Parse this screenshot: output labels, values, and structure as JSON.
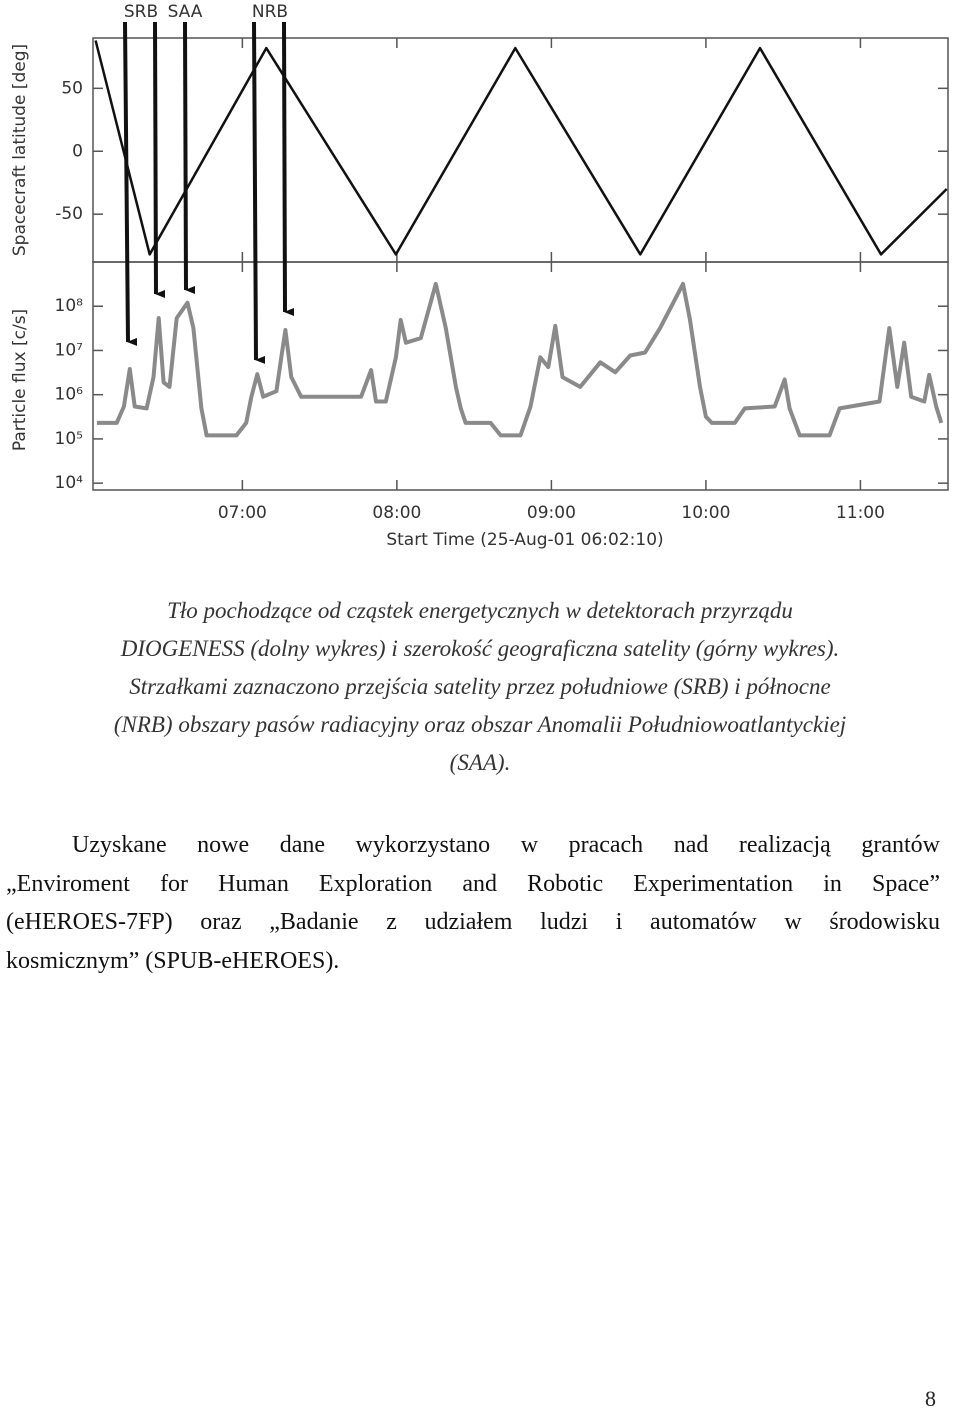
{
  "arrow_labels": [
    "SRB",
    "SAA",
    "NRB"
  ],
  "chart_data": [
    {
      "type": "line",
      "ylabel": "Spacecraft latitude [deg]",
      "xlim": [
        2,
        334
      ],
      "ylim": [
        -88,
        90
      ],
      "yticks": [
        50,
        0,
        -50
      ],
      "color": "#111111",
      "x": [
        3,
        24,
        69.3,
        119.6,
        166,
        214.5,
        261,
        308,
        333.5
      ],
      "values": [
        88,
        -82,
        82,
        -82,
        82,
        -82,
        82,
        -82,
        -30
      ]
    },
    {
      "type": "line",
      "ylabel": "Particle flux [c/s]",
      "log": true,
      "xlabel": "Start Time (25-Aug-01 06:02:10)",
      "xlim": [
        2,
        334
      ],
      "ylim": [
        7000,
        1000000000
      ],
      "xticks": [
        {
          "value": 60,
          "label": "07:00"
        },
        {
          "value": 120,
          "label": "08:00"
        },
        {
          "value": 180,
          "label": "09:00"
        },
        {
          "value": 240,
          "label": "10:00"
        },
        {
          "value": 300,
          "label": "11:00"
        }
      ],
      "yticks": [
        {
          "value": 100000000,
          "label": "10⁸"
        },
        {
          "value": 10000000,
          "label": "10⁷"
        },
        {
          "value": 1000000,
          "label": "10⁶"
        },
        {
          "value": 100000,
          "label": "10⁵"
        },
        {
          "value": 10000,
          "label": "10⁴"
        }
      ],
      "color": "#8a8a8a",
      "x": [
        3.5,
        11.2,
        14.0,
        16.3,
        18.2,
        22.8,
        25.5,
        27.5,
        29.4,
        31.7,
        34.5,
        38.7,
        41.0,
        44.1,
        46.1,
        57.7,
        61.5,
        63.5,
        65.8,
        68.1,
        73.2,
        75.1,
        76.7,
        79.0,
        82.8,
        106.1,
        110.0,
        111.9,
        115.7,
        119.6,
        121.5,
        123.5,
        129.3,
        135.1,
        139.0,
        142.9,
        144.8,
        146.7,
        156.4,
        160.3,
        168.0,
        171.9,
        175.7,
        178.8,
        181.5,
        184.3,
        191.2,
        199.0,
        204.8,
        210.6,
        216.4,
        222.2,
        231.1,
        233.8,
        237.7,
        240.0,
        242.3,
        251.2,
        255.1,
        266.7,
        270.6,
        272.5,
        276.4,
        288.0,
        291.9,
        307.4,
        311.2,
        314.3,
        317.0,
        319.7,
        324.8,
        326.7,
        329.4,
        331.4
      ],
      "values": [
        230000,
        230000,
        540000,
        3800000,
        540000,
        490000,
        2500000,
        54000000,
        1900000,
        1500000,
        54000000,
        120000000,
        32000000,
        490000,
        120000,
        120000,
        230000,
        900000,
        2900000,
        900000,
        1200000,
        7000000,
        29000000,
        2500000,
        900000,
        900000,
        3600000,
        700000,
        700000,
        7000000,
        49000000,
        15000000,
        19000000,
        320000000,
        32000000,
        1500000,
        490000,
        230000,
        230000,
        120000,
        120000,
        540000,
        7000000,
        4200000,
        36000000,
        2500000,
        1500000,
        5400000,
        3200000,
        7700000,
        9000000,
        32000000,
        320000000,
        49000000,
        1500000,
        320000,
        230000,
        230000,
        490000,
        540000,
        2200000,
        490000,
        120000,
        120000,
        490000,
        700000,
        32000000,
        1500000,
        15000000,
        900000,
        700000,
        2800000,
        540000,
        230000
      ]
    }
  ],
  "caption": [
    "Tło pochodzące od cząstek energetycznych w detektorach przyrządu",
    "DIOGENESS (dolny wykres) i szerokość geograficzna satelity (górny wykres).",
    "Strzałkami zaznaczono przejścia satelity przez południowe (SRB) i północne",
    "(NRB) obszary pasów radiacyjny oraz obszar Anomalii Południowoatlantyckiej",
    "(SAA)."
  ],
  "paragraph": [
    "Uzyskane nowe dane wykorzystano w pracach nad realizacją grantów",
    "„Enviroment for Human Exploration and Robotic Experimentation in Space”",
    "(eHEROES-7FP) oraz „Badanie z udziałem ludzi i automatów w środowisku",
    "kosmicznym” (SPUB-eHEROES)."
  ],
  "page_number": "8"
}
